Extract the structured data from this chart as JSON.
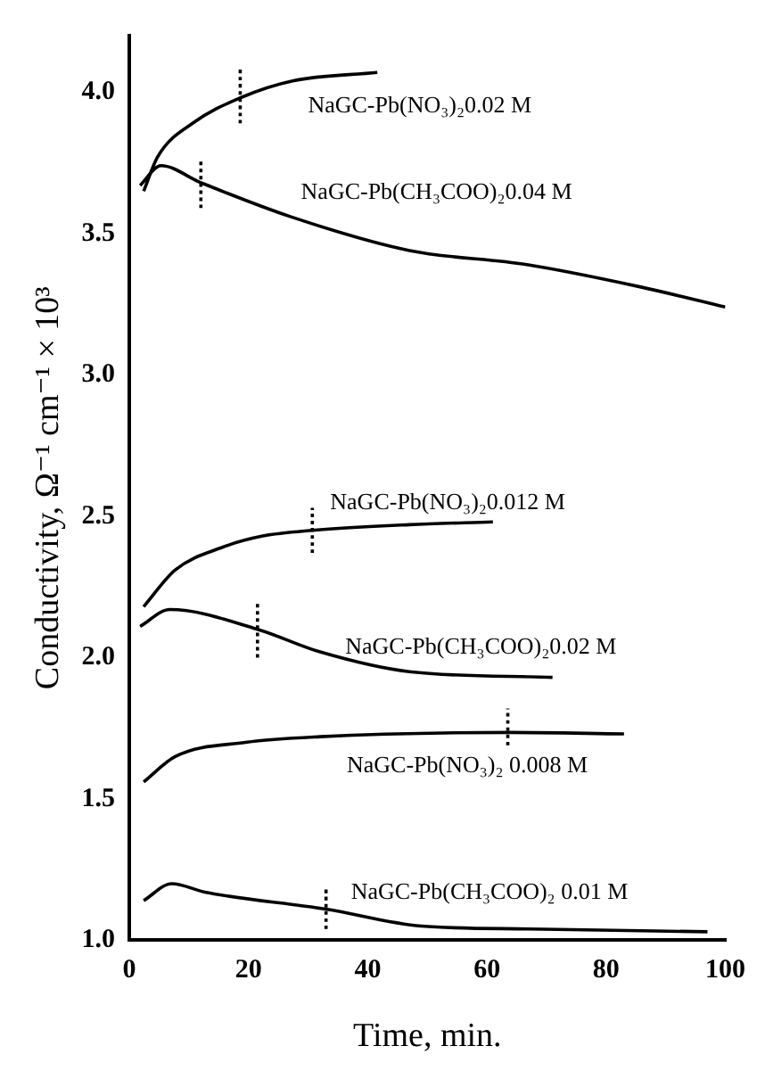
{
  "chart_data": {
    "type": "line",
    "xlabel": "Time, min.",
    "ylabel": "Conductivity, Ω⁻¹ cm⁻¹ × 10³",
    "xlim": [
      0,
      100
    ],
    "ylim": [
      1.0,
      4.2
    ],
    "xticks": [
      0,
      20,
      40,
      60,
      80,
      100
    ],
    "yticks": [
      {
        "value": 1,
        "label": "1.0"
      },
      {
        "value": 1.5,
        "label": "1.5"
      },
      {
        "value": 2,
        "label": "2.0"
      },
      {
        "value": 2.5,
        "label": "2.5"
      },
      {
        "value": 3,
        "label": "3.0"
      },
      {
        "value": 3.5,
        "label": "3.5"
      },
      {
        "value": 4,
        "label": "4.0"
      }
    ],
    "grid": false,
    "marker": "none",
    "line_style": "solid",
    "series": [
      {
        "name": "NaGC-Pb(NO₃)₂0.02 M",
        "color": "#000000",
        "x": [
          2.4,
          4.7,
          10.6,
          18.6,
          27.4,
          41.6
        ],
        "values": [
          3.65,
          3.77,
          3.89,
          3.98,
          4.04,
          4.07
        ]
      },
      {
        "name": "NaGC-Pb(CH₃COO)₂0.04 M",
        "color": "#000000",
        "x": [
          1.8,
          5.3,
          12,
          27,
          47,
          66.7,
          86,
          100
        ],
        "values": [
          3.67,
          3.74,
          3.68,
          3.56,
          3.44,
          3.39,
          3.31,
          3.24
        ]
      },
      {
        "name": "NaGC-Pb(NO₃)₂0.012 M",
        "color": "#000000",
        "x": [
          2.4,
          7.7,
          15.6,
          22.4,
          30.7,
          47,
          61
        ],
        "values": [
          2.18,
          2.31,
          2.39,
          2.43,
          2.45,
          2.47,
          2.48
        ]
      },
      {
        "name": "NaGC-Pb(CH₃COO)₂0.02 M",
        "color": "#000000",
        "x": [
          1.8,
          6.8,
          21.5,
          32,
          47,
          71
        ],
        "values": [
          2.11,
          2.17,
          2.1,
          2.02,
          1.95,
          1.93
        ]
      },
      {
        "name": "NaGC-Pb(NO₃)₂ 0.008 M",
        "color": "#000000",
        "x": [
          2.4,
          7.7,
          19.5,
          32,
          64,
          83
        ],
        "values": [
          1.56,
          1.65,
          1.7,
          1.72,
          1.735,
          1.73
        ]
      },
      {
        "name": "NaGC-Pb(CH₃COO)₂ 0.01 M",
        "color": "#000000",
        "x": [
          2.4,
          7.1,
          12.7,
          33,
          49,
          67,
          97
        ],
        "values": [
          1.14,
          1.2,
          1.17,
          1.11,
          1.05,
          1.04,
          1.03
        ]
      },
      {
        "color": "#000000",
        "line_style": "dotted",
        "x": [
          18.6,
          18.6
        ],
        "values": [
          3.89,
          4.08
        ]
      },
      {
        "color": "#000000",
        "line_style": "dotted",
        "x": [
          12,
          12
        ],
        "values": [
          3.59,
          3.76
        ]
      },
      {
        "color": "#000000",
        "line_style": "dotted",
        "x": [
          30.7,
          30.7
        ],
        "values": [
          2.37,
          2.53
        ]
      },
      {
        "color": "#000000",
        "line_style": "dotted",
        "x": [
          21.5,
          21.5
        ],
        "values": [
          2.0,
          2.19
        ]
      },
      {
        "color": "#000000",
        "line_style": "dotted",
        "x": [
          63.5,
          63.5
        ],
        "values": [
          1.69,
          1.82
        ]
      },
      {
        "color": "#000000",
        "line_style": "dotted",
        "x": [
          33,
          33
        ],
        "values": [
          1.04,
          1.19
        ]
      }
    ]
  }
}
